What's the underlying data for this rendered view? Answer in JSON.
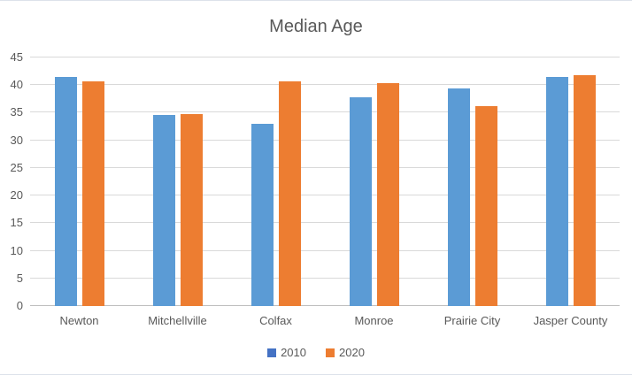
{
  "chart_data": {
    "type": "bar",
    "title": "Median Age",
    "categories": [
      "Newton",
      "Mitchellville",
      "Colfax",
      "Monroe",
      "Prairie City",
      "Jasper County"
    ],
    "series": [
      {
        "name": "2010",
        "color": "#5B9BD5",
        "legend_color": "#4472C4",
        "values": [
          41.5,
          34.6,
          33.0,
          37.8,
          39.4,
          41.5
        ]
      },
      {
        "name": "2020",
        "color": "#ED7D31",
        "legend_color": "#ED7D31",
        "values": [
          40.7,
          34.8,
          40.7,
          40.3,
          36.2,
          41.8
        ]
      }
    ],
    "xlabel": "",
    "ylabel": "",
    "ylim": [
      0,
      45
    ],
    "yticks": [
      0,
      5,
      10,
      15,
      20,
      25,
      30,
      35,
      40,
      45
    ],
    "grid": true,
    "legend_position": "bottom"
  },
  "colors": {
    "background": "#FFFFFF",
    "gridline": "#D9D9D9",
    "axis-line": "#BFBFBF",
    "text": "#595959",
    "chart-border": "#DDE2EA"
  }
}
